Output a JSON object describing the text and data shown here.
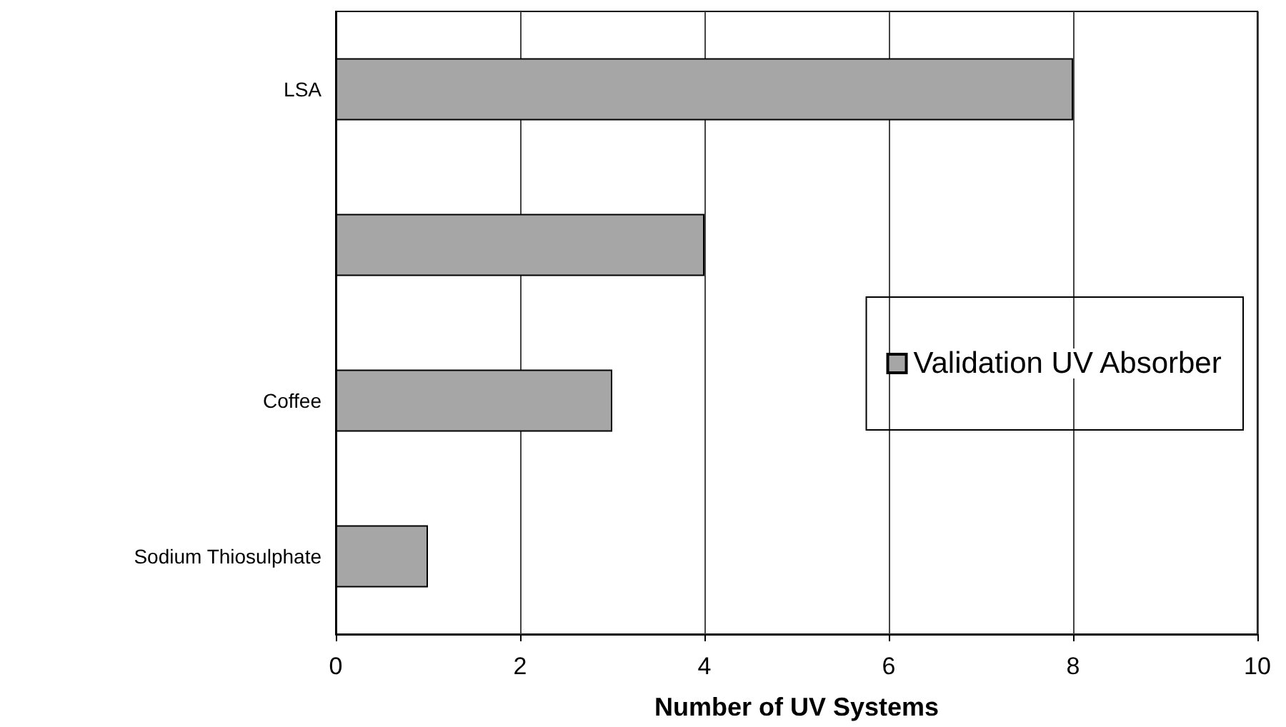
{
  "chart_data": {
    "type": "bar",
    "orientation": "horizontal",
    "xlabel": "Number of UV Systems",
    "categories": [
      "LSA",
      null,
      "Coffee",
      "Sodium Thiosulphate"
    ],
    "series": [
      {
        "name": "Validation UV Absorber",
        "color": "#a6a6a6",
        "values": [
          8,
          4,
          3,
          1
        ]
      }
    ],
    "xlim": [
      0,
      10
    ],
    "xticks": [
      0,
      2,
      4,
      6,
      8,
      10
    ],
    "grid": "x",
    "legend": "right"
  }
}
